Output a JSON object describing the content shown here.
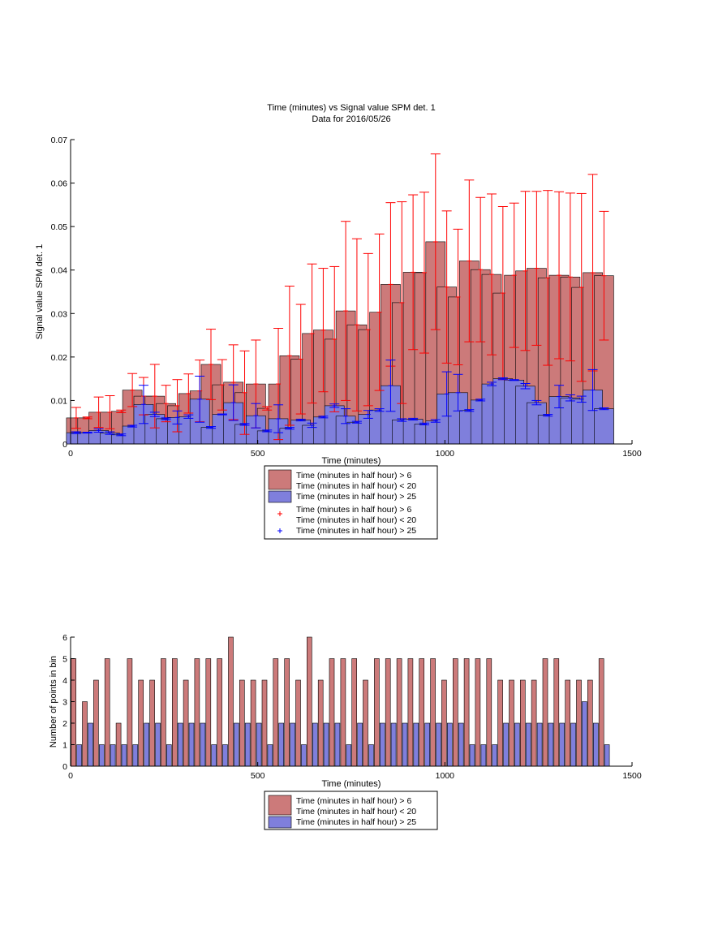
{
  "figure": {
    "title_line1": "Time (minutes) vs Signal value SPM det. 1",
    "title_line2": "Data for 2016/05/26"
  },
  "colors": {
    "series_red_fill": "#cc7a7a",
    "series_blue_fill": "#7f7fdc",
    "errorbar_red": "#ff0000",
    "errorbar_blue": "#0000ff",
    "axis": "#000000",
    "background": "#ffffff"
  },
  "chart_data": [
    {
      "type": "bar",
      "title": "Time (minutes) vs Signal value SPM det. 1",
      "subtitle": "Data for 2016/05/26",
      "xlabel": "Time (minutes)",
      "ylabel": "Signal value SPM det. 1",
      "xlim": [
        0,
        1500
      ],
      "ylim": [
        0,
        0.07
      ],
      "xticks": [
        0,
        500,
        1000,
        1500
      ],
      "yticks": [
        0,
        0.01,
        0.02,
        0.03,
        0.04,
        0.05,
        0.06,
        0.07
      ],
      "ytick_labels": [
        "0",
        "0.01",
        "0.02",
        "0.03",
        "0.04",
        "0.05",
        "0.06",
        "0.07"
      ],
      "grid": false,
      "legend_position": "below",
      "legend": [
        {
          "label_line1": "Time (minutes in half hour) > 6",
          "label_line2": "Time (minutes in half hour) < 20",
          "kind": "patch",
          "series": "red"
        },
        {
          "label_line1": "Time (minutes in half hour) > 25",
          "label_line2": "",
          "kind": "patch",
          "series": "blue"
        },
        {
          "label_line1": "Time (minutes in half hour) > 6",
          "label_line2": "Time (minutes in half hour) < 20",
          "kind": "marker",
          "series": "red"
        },
        {
          "label_line1": "Time (minutes in half hour) > 25",
          "label_line2": "",
          "kind": "marker",
          "series": "blue"
        }
      ],
      "series": [
        {
          "color_key": "series_red_fill",
          "error_color_key": "errorbar_red",
          "x": [
            15,
            45,
            75,
            105,
            135,
            165,
            195,
            225,
            255,
            285,
            315,
            345,
            375,
            405,
            435,
            465,
            495,
            525,
            555,
            585,
            615,
            645,
            675,
            705,
            735,
            765,
            795,
            825,
            855,
            885,
            915,
            945,
            975,
            1005,
            1035,
            1065,
            1095,
            1125,
            1155,
            1185,
            1215,
            1245,
            1275,
            1305,
            1335,
            1365,
            1395,
            1425
          ],
          "values": [
            0.006,
            0.006,
            0.0073,
            0.0073,
            0.0075,
            0.0124,
            0.011,
            0.011,
            0.0093,
            0.0088,
            0.0116,
            0.0122,
            0.0183,
            0.0136,
            0.0142,
            0.0118,
            0.0138,
            0.0082,
            0.0138,
            0.0203,
            0.0195,
            0.0254,
            0.0262,
            0.0241,
            0.0306,
            0.0274,
            0.0263,
            0.0303,
            0.0367,
            0.0325,
            0.0395,
            0.0394,
            0.0465,
            0.0361,
            0.0338,
            0.0421,
            0.0401,
            0.039,
            0.0347,
            0.0388,
            0.0398,
            0.0404,
            0.0382,
            0.0388,
            0.0384,
            0.036,
            0.0394,
            0.0387
          ],
          "err": [
            0.0024,
            0.0002,
            0.0035,
            0.0038,
            0.0003,
            0.0038,
            0.0043,
            0.0073,
            0.0042,
            0.006,
            0.0045,
            0.0071,
            0.0081,
            0.0058,
            0.0086,
            0.0096,
            0.0101,
            0.0004,
            0.0128,
            0.016,
            0.0126,
            0.016,
            0.0142,
            0.0167,
            0.0206,
            0.0198,
            0.0175,
            0.018,
            0.0188,
            0.0232,
            0.0178,
            0.0185,
            0.0202,
            0.0175,
            0.0156,
            0.0186,
            0.0166,
            0.0185,
            0.0199,
            0.0166,
            0.0183,
            0.0177,
            0.0201,
            0.0192,
            0.0193,
            0.0216,
            0.0226,
            0.0148
          ]
        },
        {
          "color_key": "series_blue_fill",
          "error_color_key": "errorbar_blue",
          "x": [
            15,
            45,
            75,
            105,
            135,
            165,
            195,
            225,
            255,
            285,
            315,
            345,
            375,
            405,
            435,
            465,
            495,
            525,
            555,
            585,
            615,
            645,
            675,
            705,
            735,
            765,
            795,
            825,
            855,
            885,
            915,
            945,
            975,
            1005,
            1035,
            1065,
            1095,
            1125,
            1155,
            1185,
            1215,
            1245,
            1275,
            1305,
            1335,
            1365,
            1395,
            1425
          ],
          "values": [
            0.0026,
            0.0026,
            0.0031,
            0.0025,
            0.0021,
            0.0041,
            0.0091,
            0.0068,
            0.0058,
            0.0061,
            0.0063,
            0.0103,
            0.0038,
            0.0068,
            0.0095,
            0.0045,
            0.0065,
            0.003,
            0.0058,
            0.0036,
            0.0055,
            0.0043,
            0.0062,
            0.0088,
            0.0064,
            0.005,
            0.0068,
            0.0078,
            0.0134,
            0.0055,
            0.0057,
            0.0046,
            0.0053,
            0.0115,
            0.0118,
            0.0077,
            0.0101,
            0.0138,
            0.015,
            0.0147,
            0.0133,
            0.0095,
            0.0066,
            0.0109,
            0.0106,
            0.0103,
            0.0124,
            0.0081
          ],
          "err": [
            0.0002,
            0.0001,
            0.0004,
            0.0003,
            0.0002,
            0.0002,
            0.0044,
            0.0005,
            0.0002,
            0.0015,
            0.0004,
            0.0053,
            0.0002,
            0.0001,
            0.0041,
            0.0002,
            0.0028,
            0.0002,
            0.0032,
            0.0002,
            0.0002,
            0.0005,
            0.0002,
            0.0004,
            0.0017,
            0.0002,
            0.0009,
            0.0003,
            0.0059,
            0.0003,
            0.0002,
            0.0002,
            0.0003,
            0.0051,
            0.0042,
            0.0002,
            0.0002,
            0.0004,
            0.0002,
            0.0001,
            0.0006,
            0.0005,
            0.0002,
            0.0026,
            0.0007,
            0.0007,
            0.0047,
            0.0002
          ]
        }
      ]
    },
    {
      "type": "bar",
      "title": "",
      "xlabel": "Time (minutes)",
      "ylabel": "Number of points in bin",
      "xlim": [
        0,
        1500
      ],
      "ylim": [
        0,
        6
      ],
      "xticks": [
        0,
        500,
        1000,
        1500
      ],
      "yticks": [
        0,
        1,
        2,
        3,
        4,
        5,
        6
      ],
      "ytick_labels": [
        "0",
        "1",
        "2",
        "3",
        "4",
        "5",
        "6"
      ],
      "grid": false,
      "legend_position": "below",
      "legend": [
        {
          "label_line1": "Time (minutes in half hour) > 6",
          "label_line2": "Time (minutes in half hour) < 20",
          "kind": "patch",
          "series": "red"
        },
        {
          "label_line1": "Time (minutes in half hour) > 25",
          "label_line2": "",
          "kind": "patch",
          "series": "blue"
        }
      ],
      "series": [
        {
          "color_key": "series_red_fill",
          "x": [
            8,
            38,
            68,
            98,
            128,
            158,
            188,
            218,
            248,
            278,
            308,
            338,
            368,
            398,
            428,
            458,
            488,
            518,
            548,
            578,
            608,
            638,
            668,
            698,
            728,
            758,
            788,
            818,
            848,
            878,
            908,
            938,
            968,
            998,
            1028,
            1058,
            1088,
            1118,
            1148,
            1178,
            1208,
            1238,
            1268,
            1298,
            1328,
            1358,
            1388,
            1418
          ],
          "values": [
            5,
            3,
            4,
            5,
            2,
            5,
            4,
            4,
            5,
            5,
            4,
            5,
            5,
            5,
            6,
            4,
            4,
            4,
            5,
            5,
            4,
            6,
            4,
            5,
            5,
            5,
            4,
            5,
            5,
            5,
            5,
            5,
            5,
            4,
            5,
            5,
            5,
            5,
            4,
            4,
            4,
            4,
            5,
            5,
            4,
            4,
            4,
            5
          ]
        },
        {
          "color_key": "series_blue_fill",
          "x": [
            23,
            53,
            83,
            113,
            143,
            173,
            203,
            233,
            263,
            293,
            323,
            353,
            383,
            413,
            443,
            473,
            503,
            533,
            563,
            593,
            623,
            653,
            683,
            713,
            743,
            773,
            803,
            833,
            863,
            893,
            923,
            953,
            983,
            1013,
            1043,
            1073,
            1103,
            1133,
            1163,
            1193,
            1223,
            1253,
            1283,
            1313,
            1343,
            1373,
            1403,
            1433
          ],
          "values": [
            1,
            2,
            1,
            1,
            1,
            1,
            2,
            2,
            1,
            2,
            2,
            2,
            1,
            1,
            2,
            2,
            2,
            1,
            2,
            2,
            1,
            2,
            2,
            2,
            1,
            2,
            1,
            2,
            2,
            2,
            2,
            2,
            2,
            2,
            2,
            1,
            1,
            1,
            2,
            2,
            2,
            2,
            2,
            2,
            2,
            3,
            2,
            1
          ]
        }
      ]
    }
  ]
}
